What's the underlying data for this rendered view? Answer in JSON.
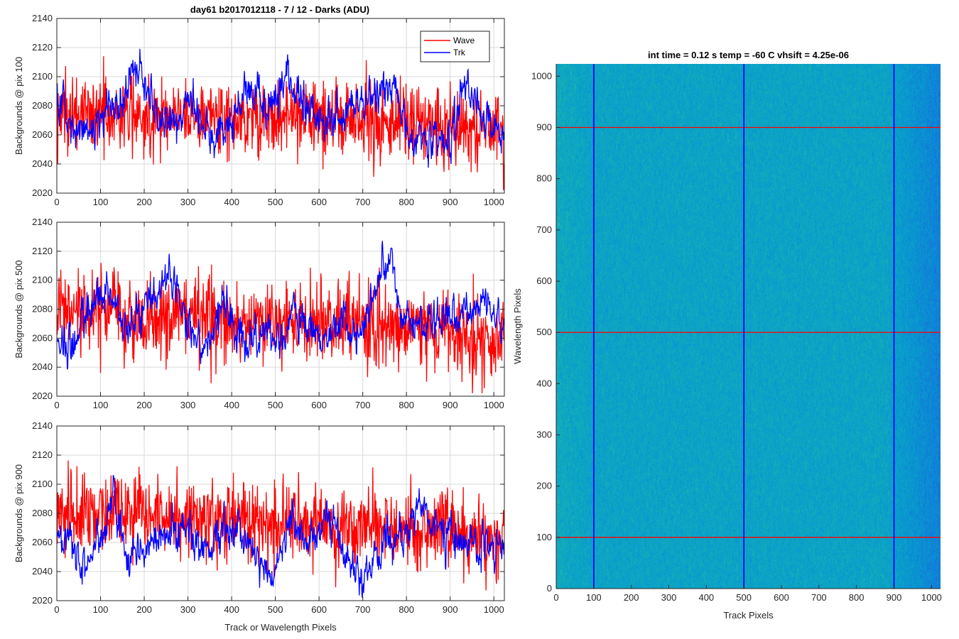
{
  "figure_title": "day61 b2017012118 - 7 / 12 - Darks (ADU)",
  "colors": {
    "wave": "#ff0000",
    "trk": "#0000ff",
    "grid": "#d9d9d9",
    "axis": "#262626"
  },
  "chart_data": [
    {
      "type": "line",
      "ylabel": "Backgrounds @ pix 100",
      "xlabel": "",
      "xlim": [
        0,
        1024
      ],
      "ylim": [
        2020,
        2140
      ],
      "xticks": [
        0,
        100,
        200,
        300,
        400,
        500,
        600,
        700,
        800,
        900,
        1000
      ],
      "yticks": [
        2020,
        2040,
        2060,
        2080,
        2100,
        2120,
        2140
      ],
      "grid": true,
      "legend_location": "top-right",
      "series": [
        {
          "name": "Wave",
          "color": "#ff0000",
          "mean": 2072,
          "std": 13,
          "x": [
            0,
            100,
            200,
            300,
            400,
            500,
            600,
            700,
            800,
            900,
            1024
          ],
          "level": [
            2073,
            2075,
            2073,
            2074,
            2072,
            2072,
            2071,
            2070,
            2069,
            2066,
            2064
          ]
        },
        {
          "name": "Trk",
          "color": "#0000ff",
          "mean": 2074,
          "std": 6,
          "x": [
            0,
            30,
            60,
            100,
            150,
            180,
            200,
            230,
            260,
            300,
            350,
            400,
            430,
            480,
            530,
            570,
            610,
            650,
            700,
            740,
            770,
            800,
            850,
            900,
            935,
            960,
            1000,
            1024
          ],
          "level": [
            2090,
            2065,
            2058,
            2075,
            2085,
            2110,
            2092,
            2068,
            2072,
            2085,
            2060,
            2068,
            2095,
            2080,
            2098,
            2078,
            2070,
            2070,
            2082,
            2092,
            2090,
            2062,
            2052,
            2060,
            2100,
            2080,
            2070,
            2060
          ]
        }
      ]
    },
    {
      "type": "line",
      "ylabel": "Backgrounds @ pix 500",
      "xlabel": "",
      "xlim": [
        0,
        1024
      ],
      "ylim": [
        2020,
        2140
      ],
      "xticks": [
        0,
        100,
        200,
        300,
        400,
        500,
        600,
        700,
        800,
        900,
        1000
      ],
      "yticks": [
        2020,
        2040,
        2060,
        2080,
        2100,
        2120,
        2140
      ],
      "grid": true,
      "series": [
        {
          "name": "Wave",
          "color": "#ff0000",
          "mean": 2072,
          "std": 14,
          "x": [
            0,
            100,
            200,
            300,
            400,
            500,
            600,
            700,
            800,
            900,
            1024
          ],
          "level": [
            2078,
            2075,
            2072,
            2074,
            2073,
            2072,
            2072,
            2070,
            2066,
            2062,
            2055
          ]
        },
        {
          "name": "Trk",
          "color": "#0000ff",
          "mean": 2072,
          "std": 6,
          "x": [
            0,
            20,
            60,
            100,
            130,
            170,
            220,
            260,
            300,
            340,
            380,
            430,
            470,
            500,
            540,
            600,
            640,
            680,
            720,
            760,
            800,
            850,
            890,
            940,
            970,
            1000,
            1024
          ],
          "level": [
            2058,
            2050,
            2070,
            2095,
            2085,
            2065,
            2088,
            2104,
            2068,
            2048,
            2085,
            2050,
            2068,
            2052,
            2080,
            2055,
            2075,
            2060,
            2085,
            2115,
            2072,
            2065,
            2082,
            2072,
            2088,
            2076,
            2070
          ]
        }
      ]
    },
    {
      "type": "line",
      "ylabel": "Backgrounds @ pix 900",
      "xlabel": "Track or Wavelength Pixels",
      "xlim": [
        0,
        1024
      ],
      "ylim": [
        2020,
        2140
      ],
      "xticks": [
        0,
        100,
        200,
        300,
        400,
        500,
        600,
        700,
        800,
        900,
        1000
      ],
      "yticks": [
        2020,
        2040,
        2060,
        2080,
        2100,
        2120,
        2140
      ],
      "grid": true,
      "series": [
        {
          "name": "Wave",
          "color": "#ff0000",
          "mean": 2075,
          "std": 14,
          "x": [
            0,
            100,
            200,
            300,
            400,
            500,
            600,
            700,
            800,
            900,
            1024
          ],
          "level": [
            2082,
            2080,
            2078,
            2077,
            2076,
            2073,
            2072,
            2070,
            2068,
            2066,
            2062
          ]
        },
        {
          "name": "Trk",
          "color": "#0000ff",
          "mean": 2064,
          "std": 6,
          "x": [
            0,
            30,
            55,
            100,
            130,
            160,
            200,
            260,
            300,
            340,
            380,
            420,
            470,
            500,
            540,
            580,
            620,
            650,
            680,
            700,
            760,
            800,
            830,
            860,
            900,
            950,
            1000,
            1024
          ],
          "level": [
            2065,
            2060,
            2045,
            2060,
            2090,
            2048,
            2052,
            2072,
            2068,
            2050,
            2075,
            2065,
            2042,
            2040,
            2075,
            2060,
            2082,
            2060,
            2045,
            2040,
            2062,
            2070,
            2090,
            2068,
            2065,
            2060,
            2058,
            2055
          ]
        }
      ]
    },
    {
      "type": "heatmap",
      "title": "int time = 0.12 s    temp = -60 C    vhsift = 4.25e-06",
      "xlabel": "Track Pixels",
      "ylabel": "Wavelength Pixels",
      "xlim": [
        0,
        1024
      ],
      "ylim": [
        0,
        1024
      ],
      "xticks": [
        0,
        100,
        200,
        300,
        400,
        500,
        600,
        700,
        800,
        900,
        1000
      ],
      "yticks": [
        0,
        100,
        200,
        300,
        400,
        500,
        600,
        700,
        800,
        900,
        1000
      ],
      "colormap": "parula",
      "marker_columns": [
        100,
        500,
        900
      ],
      "marker_rows": [
        100,
        500,
        900
      ],
      "marker_column_color": "#0000ff",
      "marker_row_color": "#ff0000"
    }
  ]
}
